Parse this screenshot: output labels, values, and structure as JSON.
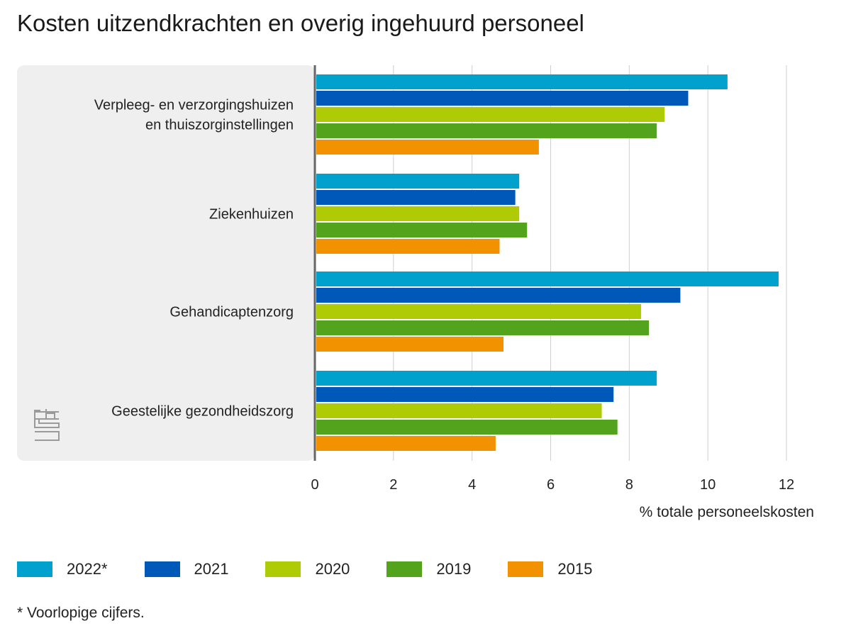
{
  "chart_data": {
    "type": "bar",
    "orientation": "horizontal",
    "title": "Kosten uitzendkrachten en overig ingehuurd personeel",
    "xlabel": "% totale personeelskosten",
    "ylabel": "",
    "xlim": [
      0,
      12
    ],
    "ticks": [
      "0",
      "2",
      "4",
      "6",
      "8",
      "10",
      "12"
    ],
    "grid": true,
    "legend_position": "bottom",
    "categories": [
      [
        "Verpleeg- en verzorgingshuizen",
        "en thuiszorginstellingen"
      ],
      [
        "Ziekenhuizen"
      ],
      [
        "Gehandicaptenzorg"
      ],
      [
        "Geestelijke gezondheidszorg"
      ]
    ],
    "series": [
      {
        "name": "2022*",
        "color": "#00a1cd",
        "values": [
          10.5,
          5.2,
          11.8,
          8.7
        ]
      },
      {
        "name": "2021",
        "color": "#0058b8",
        "values": [
          9.5,
          5.1,
          9.3,
          7.6
        ]
      },
      {
        "name": "2020",
        "color": "#afcb05",
        "values": [
          8.9,
          5.2,
          8.3,
          7.3
        ]
      },
      {
        "name": "2019",
        "color": "#53a31d",
        "values": [
          8.7,
          5.4,
          8.5,
          7.7
        ]
      },
      {
        "name": "2015",
        "color": "#f39200",
        "values": [
          5.7,
          4.7,
          4.8,
          4.6
        ]
      }
    ],
    "footnote": "* Voorlopige cijfers."
  },
  "logo": {
    "name": "cbs-logo",
    "text": "cbs"
  }
}
